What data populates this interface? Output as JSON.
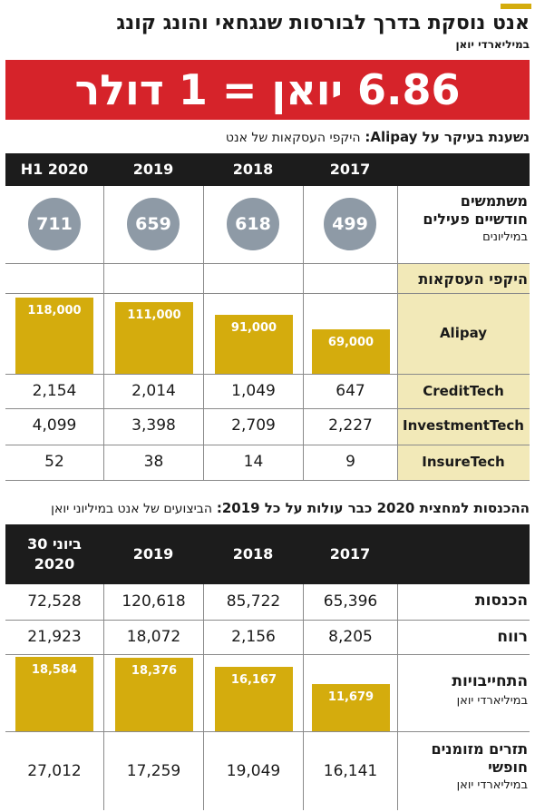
{
  "title": "אנט נוסקת בדרך לבורסות שנגחאי והונג קונג",
  "unit": "במיליארדי יואן",
  "banner": "6.86 יואן = 1 דולר",
  "section1": {
    "title_bold": "נשענת בעיקר על Alipay:",
    "title_light": "היקפי העסקאות של אנט",
    "columns": [
      "H1 2020",
      "2019",
      "2018",
      "2017"
    ],
    "users_label_line1": "משתמשים",
    "users_label_line2": "חודשיים פעילים",
    "users_unit": "במיליונים",
    "users": [
      "711",
      "659",
      "618",
      "499"
    ],
    "volume_header": "היקפי העסקאות",
    "alipay_label": "Alipay",
    "alipay": [
      "118,000",
      "111,000",
      "91,000",
      "69,000"
    ],
    "rows": [
      {
        "label": "CreditTech",
        "values": [
          "2,154",
          "2,014",
          "1,049",
          "647"
        ]
      },
      {
        "label": "InvestmentTech",
        "values": [
          "4,099",
          "3,398",
          "2,709",
          "2,227"
        ]
      },
      {
        "label": "InsureTech",
        "values": [
          "52",
          "38",
          "14",
          "9"
        ]
      }
    ]
  },
  "section2": {
    "title_bold": "ההכנסות למחצית 2020 כבר עולות על כל 2019:",
    "title_light": "הביצועים של אנט במיליוני יואן",
    "columns_line1": [
      "30 ביוני",
      "2019",
      "2018",
      "2017"
    ],
    "columns_line2": [
      "2020",
      "",
      "",
      ""
    ],
    "revenue_label": "הכנסות",
    "revenue": [
      "72,528",
      "120,618",
      "85,722",
      "65,396"
    ],
    "profit_label": "רווח",
    "profit": [
      "21,923",
      "18,072",
      "2,156",
      "8,205"
    ],
    "liabilities_label": "התחייבויות",
    "liabilities_unit": "במיליארדי יואן",
    "liabilities": [
      "18,584",
      "18,376",
      "16,167",
      "11,679"
    ],
    "fcf_label_line1": "תזרים מזומנים",
    "fcf_label_line2": "חופשי",
    "fcf_unit": "במיליארדי יואן",
    "fcf": [
      "27,012",
      "17,259",
      "19,049",
      "16,141"
    ]
  },
  "chart_data": [
    {
      "type": "bar",
      "categories": [
        "H1 2020",
        "2019",
        "2018",
        "2017"
      ],
      "series": [
        {
          "name": "Alipay",
          "values": [
            118000,
            111000,
            91000,
            69000
          ]
        }
      ],
      "ylim": [
        0,
        118000
      ]
    },
    {
      "type": "bar",
      "categories": [
        "30 ביוני 2020",
        "2019",
        "2018",
        "2017"
      ],
      "series": [
        {
          "name": "התחייבויות",
          "values": [
            18584,
            18376,
            16167,
            11679
          ]
        }
      ],
      "ylim": [
        0,
        18584
      ]
    }
  ],
  "colors": {
    "accent": "#d4ac0d",
    "banner": "#d6232a",
    "header": "#1c1c1c",
    "circle": "#8e9aa6",
    "label_bg": "#f2e9b8"
  }
}
